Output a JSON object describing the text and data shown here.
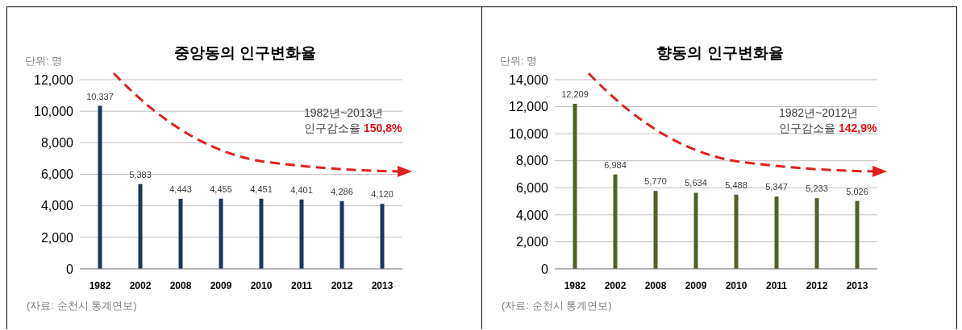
{
  "chart_data": [
    {
      "type": "bar",
      "title": "중앙동의 인구변화율",
      "ylabel": "단위: 명",
      "categories": [
        "1982",
        "2002",
        "2008",
        "2009",
        "2010",
        "2011",
        "2012",
        "2013"
      ],
      "values": [
        10337,
        5383,
        4443,
        4455,
        4451,
        4401,
        4286,
        4120
      ],
      "value_labels": [
        "10,337",
        "5,383",
        "4,443",
        "4,455",
        "4,451",
        "4,401",
        "4,286",
        "4,120"
      ],
      "color": "#1b365d",
      "ylim": [
        0,
        12000
      ],
      "yticks": [
        0,
        {
          "value": 2000,
          "label": "2,000"
        },
        {
          "value": 4000,
          "label": "4,000"
        },
        {
          "value": 6000,
          "label": "6,000"
        },
        {
          "value": 8000,
          "label": "8,000"
        },
        {
          "value": 10000,
          "label": "10,000"
        },
        {
          "value": 12000,
          "label": "12,000"
        }
      ],
      "grid": "y",
      "annotations": [
        "1982년~2013년",
        "인구감소율 150,8%",
        "(자료: 순천시 통계연보)"
      ]
    },
    {
      "type": "bar",
      "title": "향동의 인구변화율",
      "ylabel": "단위: 명",
      "categories": [
        "1982",
        "2002",
        "2008",
        "2009",
        "2010",
        "2011",
        "2012",
        "2013"
      ],
      "values": [
        12209,
        6984,
        5770,
        5634,
        5488,
        5347,
        5233,
        5026
      ],
      "value_labels": [
        "12,209",
        "6,984",
        "5,770",
        "5,634",
        "5,488",
        "5,347",
        "5,233",
        "5,026"
      ],
      "color": "#4f6228",
      "ylim": [
        0,
        14000
      ],
      "yticks": [
        0,
        {
          "value": 2000,
          "label": "2,000"
        },
        {
          "value": 4000,
          "label": "4,000"
        },
        {
          "value": 6000,
          "label": "6,000"
        },
        {
          "value": 8000,
          "label": "8,000"
        },
        {
          "value": 10000,
          "label": "10,000"
        },
        {
          "value": 12000,
          "label": "12,000"
        },
        {
          "value": 14000,
          "label": "14,000"
        }
      ],
      "grid": "y",
      "annotations": [
        "1982년~2012년",
        "인구감소율 142,9%",
        "(자료: 순천시 통계연보)"
      ]
    }
  ]
}
